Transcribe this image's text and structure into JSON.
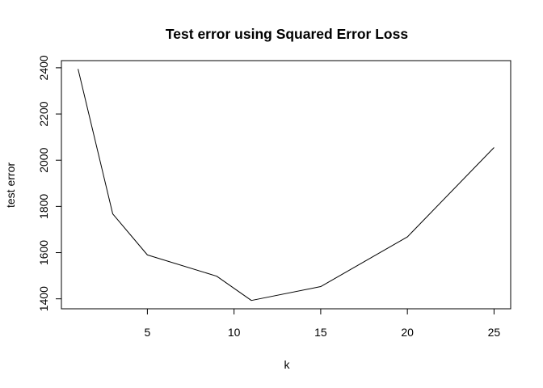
{
  "chart_data": {
    "type": "line",
    "title": "Test error using Squared Error Loss",
    "xlabel": "k",
    "ylabel": "test error",
    "x": [
      1,
      3,
      5,
      9,
      11,
      15,
      20,
      25
    ],
    "y": [
      2395,
      1768,
      1590,
      1498,
      1393,
      1453,
      1668,
      2055
    ],
    "xlim": [
      0.04,
      25.96
    ],
    "ylim": [
      1356.92,
      2431.08
    ],
    "xticks": [
      5,
      10,
      15,
      20,
      25
    ],
    "yticks": [
      1400,
      1600,
      1800,
      2000,
      2200,
      2400
    ],
    "grid": false,
    "legend": "none",
    "line_color": "#000000"
  }
}
